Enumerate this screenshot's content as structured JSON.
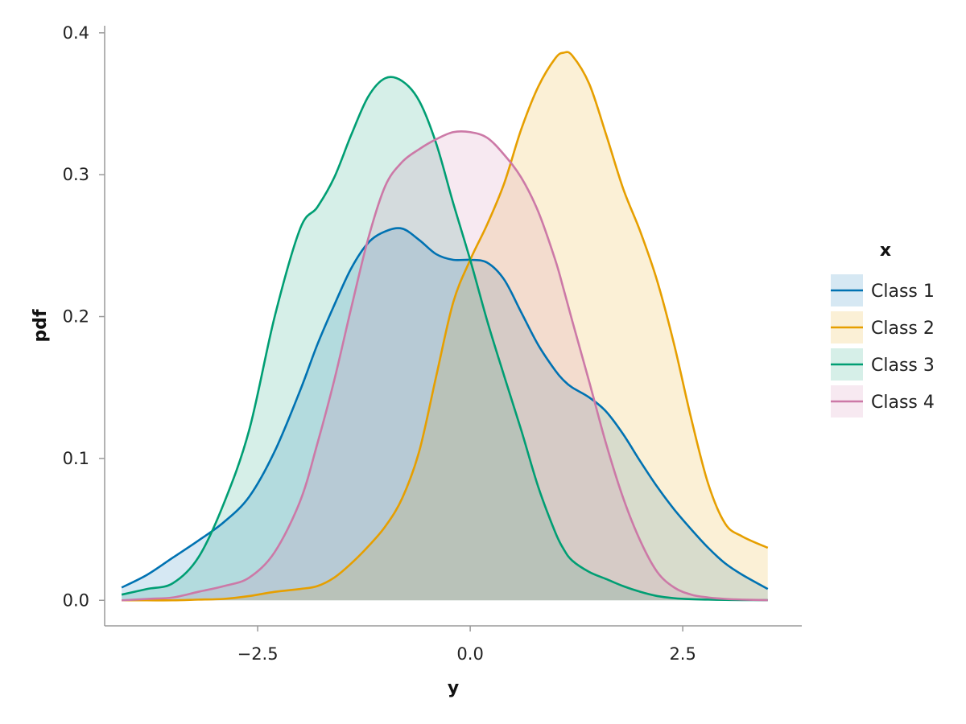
{
  "chart_data": {
    "type": "area",
    "title": "",
    "xlabel": "y",
    "ylabel": "pdf",
    "xlim": [
      -4.3,
      3.9
    ],
    "ylim": [
      -0.018,
      0.405
    ],
    "x_ticks": [
      -2.5,
      0.0,
      2.5
    ],
    "x_tick_labels": [
      "−2.5",
      "0.0",
      "2.5"
    ],
    "y_ticks": [
      0.0,
      0.1,
      0.2,
      0.3,
      0.4
    ],
    "y_tick_labels": [
      "0.0",
      "0.1",
      "0.2",
      "0.3",
      "0.4"
    ],
    "grid": false,
    "legend": {
      "title": "x",
      "placement": "right"
    },
    "x": [
      -4.1,
      -3.8,
      -3.5,
      -3.2,
      -2.9,
      -2.6,
      -2.3,
      -2.0,
      -1.8,
      -1.6,
      -1.4,
      -1.2,
      -1.0,
      -0.8,
      -0.6,
      -0.4,
      -0.2,
      0.0,
      0.2,
      0.4,
      0.6,
      0.8,
      1.0,
      1.1,
      1.2,
      1.4,
      1.6,
      1.8,
      2.0,
      2.2,
      2.4,
      2.6,
      2.8,
      3.0,
      3.2,
      3.5
    ],
    "series": [
      {
        "name": "Class 1",
        "color": "#0072B2",
        "values": [
          0.009,
          0.018,
          0.03,
          0.042,
          0.055,
          0.073,
          0.105,
          0.148,
          0.18,
          0.208,
          0.234,
          0.252,
          0.26,
          0.262,
          0.254,
          0.244,
          0.24,
          0.24,
          0.238,
          0.226,
          0.203,
          0.18,
          0.162,
          0.155,
          0.15,
          0.143,
          0.133,
          0.117,
          0.098,
          0.08,
          0.064,
          0.05,
          0.037,
          0.026,
          0.018,
          0.008
        ]
      },
      {
        "name": "Class 2",
        "color": "#E69F00",
        "values": [
          0.0,
          0.0,
          0.0,
          0.0005,
          0.001,
          0.003,
          0.006,
          0.008,
          0.01,
          0.016,
          0.026,
          0.038,
          0.052,
          0.072,
          0.105,
          0.158,
          0.21,
          0.24,
          0.265,
          0.294,
          0.332,
          0.362,
          0.382,
          0.386,
          0.384,
          0.364,
          0.328,
          0.29,
          0.26,
          0.225,
          0.18,
          0.128,
          0.082,
          0.054,
          0.045,
          0.037
        ]
      },
      {
        "name": "Class 3",
        "color": "#009E73",
        "values": [
          0.004,
          0.008,
          0.012,
          0.03,
          0.068,
          0.12,
          0.2,
          0.262,
          0.277,
          0.298,
          0.328,
          0.355,
          0.368,
          0.366,
          0.352,
          0.322,
          0.28,
          0.24,
          0.197,
          0.158,
          0.12,
          0.08,
          0.048,
          0.036,
          0.028,
          0.02,
          0.015,
          0.01,
          0.006,
          0.003,
          0.0015,
          0.0008,
          0.0005,
          0.0003,
          0.0002,
          0.0001
        ]
      },
      {
        "name": "Class 4",
        "color": "#CC79A7",
        "values": [
          0.0,
          0.001,
          0.002,
          0.006,
          0.01,
          0.016,
          0.034,
          0.07,
          0.11,
          0.155,
          0.206,
          0.255,
          0.292,
          0.309,
          0.318,
          0.325,
          0.33,
          0.33,
          0.326,
          0.314,
          0.298,
          0.274,
          0.24,
          0.219,
          0.197,
          0.154,
          0.11,
          0.072,
          0.042,
          0.02,
          0.009,
          0.004,
          0.002,
          0.001,
          0.0005,
          0.0001
        ]
      }
    ]
  }
}
